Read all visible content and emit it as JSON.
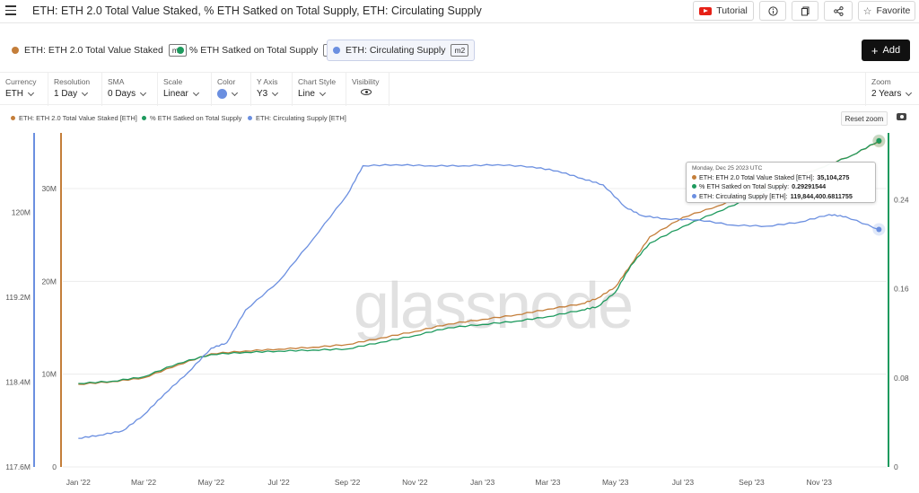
{
  "header": {
    "title": "ETH: ETH 2.0 Total Value Staked, % ETH Satked on Total Supply, ETH: Circulating Supply",
    "tutorial_label": "Tutorial",
    "favorite_label": "Favorite"
  },
  "metrics": [
    {
      "label": "ETH: ETH 2.0 Total Value Staked",
      "tag": "m1",
      "color": "#c47e3a"
    },
    {
      "label": "% ETH Satked on Total Supply",
      "tag": "f1",
      "color": "#1e9a5e"
    },
    {
      "label": "ETH: Circulating Supply",
      "tag": "m2",
      "color": "#6b8fe0"
    }
  ],
  "add_label": "Add",
  "controls": {
    "currency": {
      "label": "Currency",
      "value": "ETH"
    },
    "resolution": {
      "label": "Resolution",
      "value": "1 Day"
    },
    "sma": {
      "label": "SMA",
      "value": "0 Days"
    },
    "scale": {
      "label": "Scale",
      "value": "Linear"
    },
    "color": {
      "label": "Color"
    },
    "y_axis": {
      "label": "Y Axis",
      "value": "Y3"
    },
    "chart_style": {
      "label": "Chart Style",
      "value": "Line"
    },
    "visibility": {
      "label": "Visibility"
    },
    "zoom": {
      "label": "Zoom",
      "value": "2 Years"
    }
  },
  "reset_zoom_label": "Reset zoom",
  "watermark": "glassnode",
  "tooltip": {
    "date": "Monday, Dec 25 2023 UTC",
    "rows": [
      {
        "label": "ETH: ETH 2.0 Total Value Staked [ETH]:",
        "value": "35,104,275",
        "color": "#c47e3a"
      },
      {
        "label": "% ETH Satked on Total Supply:",
        "value": "0.29291544",
        "color": "#1e9a5e"
      },
      {
        "label": "ETH: Circulating Supply [ETH]:",
        "value": "119,844,400.6811755",
        "color": "#6b8fe0"
      }
    ]
  },
  "chart_data": {
    "type": "line",
    "x_ticks": [
      "Jan '22",
      "Mar '22",
      "May '22",
      "Jul '22",
      "Sep '22",
      "Nov '22",
      "Jan '23",
      "Mar '23",
      "May '23",
      "Jul '23",
      "Sep '23",
      "Nov '23"
    ],
    "axes": {
      "circulating": {
        "ticks": [
          "117.6M",
          "118.4M",
          "119.2M",
          "120M"
        ],
        "ylim": [
          117.6,
          120.75
        ]
      },
      "staked": {
        "ticks": [
          "0",
          "10M",
          "20M",
          "30M"
        ],
        "ylim": [
          0,
          36
        ]
      },
      "pct": {
        "ticks": [
          "0",
          "0.08",
          "0.16",
          "0.24"
        ],
        "ylim": [
          0,
          0.3
        ]
      }
    },
    "series": [
      {
        "name": "ETH: ETH 2.0 Total Value Staked [ETH]",
        "axis": "staked",
        "color": "#c47e3a",
        "x": [
          "2022-01-01",
          "2022-02-01",
          "2022-03-01",
          "2022-04-01",
          "2022-05-01",
          "2022-06-01",
          "2022-07-01",
          "2022-08-01",
          "2022-09-01",
          "2022-10-01",
          "2022-11-01",
          "2022-12-01",
          "2023-01-01",
          "2023-02-01",
          "2023-03-01",
          "2023-04-01",
          "2023-04-15",
          "2023-05-01",
          "2023-05-15",
          "2023-06-01",
          "2023-07-01",
          "2023-08-01",
          "2023-09-01",
          "2023-10-01",
          "2023-11-01",
          "2023-12-01",
          "2023-12-25"
        ],
        "y": [
          8.9,
          9.2,
          9.6,
          11.0,
          12.2,
          12.5,
          12.7,
          12.9,
          13.2,
          13.9,
          14.6,
          15.4,
          15.9,
          16.4,
          17.0,
          17.6,
          18.2,
          19.4,
          21.8,
          24.8,
          26.9,
          28.1,
          29.6,
          31.0,
          32.2,
          33.6,
          35.104275
        ]
      },
      {
        "name": "% ETH Satked on Total Supply",
        "axis": "pct",
        "color": "#1e9a5e",
        "x": [
          "2022-01-01",
          "2022-02-01",
          "2022-03-01",
          "2022-04-01",
          "2022-05-01",
          "2022-06-01",
          "2022-07-01",
          "2022-08-01",
          "2022-09-01",
          "2022-10-01",
          "2022-11-01",
          "2022-12-01",
          "2023-01-01",
          "2023-02-01",
          "2023-03-01",
          "2023-04-01",
          "2023-04-15",
          "2023-05-01",
          "2023-05-15",
          "2023-06-01",
          "2023-07-01",
          "2023-08-01",
          "2023-09-01",
          "2023-10-01",
          "2023-11-01",
          "2023-12-01",
          "2023-12-25"
        ],
        "y": [
          0.075,
          0.077,
          0.081,
          0.093,
          0.101,
          0.103,
          0.104,
          0.105,
          0.106,
          0.112,
          0.118,
          0.125,
          0.128,
          0.131,
          0.135,
          0.141,
          0.144,
          0.157,
          0.181,
          0.201,
          0.216,
          0.229,
          0.242,
          0.256,
          0.268,
          0.28,
          0.29291544
        ]
      },
      {
        "name": "ETH: Circulating Supply [ETH]",
        "axis": "circulating",
        "color": "#6b8fe0",
        "x": [
          "2022-01-01",
          "2022-01-20",
          "2022-02-10",
          "2022-03-01",
          "2022-03-20",
          "2022-04-10",
          "2022-05-01",
          "2022-05-15",
          "2022-06-01",
          "2022-07-01",
          "2022-08-01",
          "2022-09-01",
          "2022-09-15",
          "2022-10-15",
          "2022-11-15",
          "2022-12-15",
          "2023-01-15",
          "2023-02-15",
          "2023-03-10",
          "2023-04-01",
          "2023-04-20",
          "2023-05-10",
          "2023-05-25",
          "2023-06-15",
          "2023-07-15",
          "2023-08-15",
          "2023-09-15",
          "2023-10-15",
          "2023-11-10",
          "2023-11-25",
          "2023-12-25"
        ],
        "y": [
          117.87,
          117.9,
          117.94,
          118.09,
          118.29,
          118.49,
          118.72,
          118.77,
          119.08,
          119.35,
          119.75,
          120.17,
          120.44,
          120.45,
          120.44,
          120.44,
          120.45,
          120.43,
          120.39,
          120.32,
          120.26,
          120.05,
          119.97,
          119.94,
          119.93,
          119.88,
          119.87,
          119.91,
          119.98,
          119.96,
          119.84
        ]
      }
    ],
    "xlim": [
      "2021-12-18",
      "2024-01-01"
    ]
  }
}
